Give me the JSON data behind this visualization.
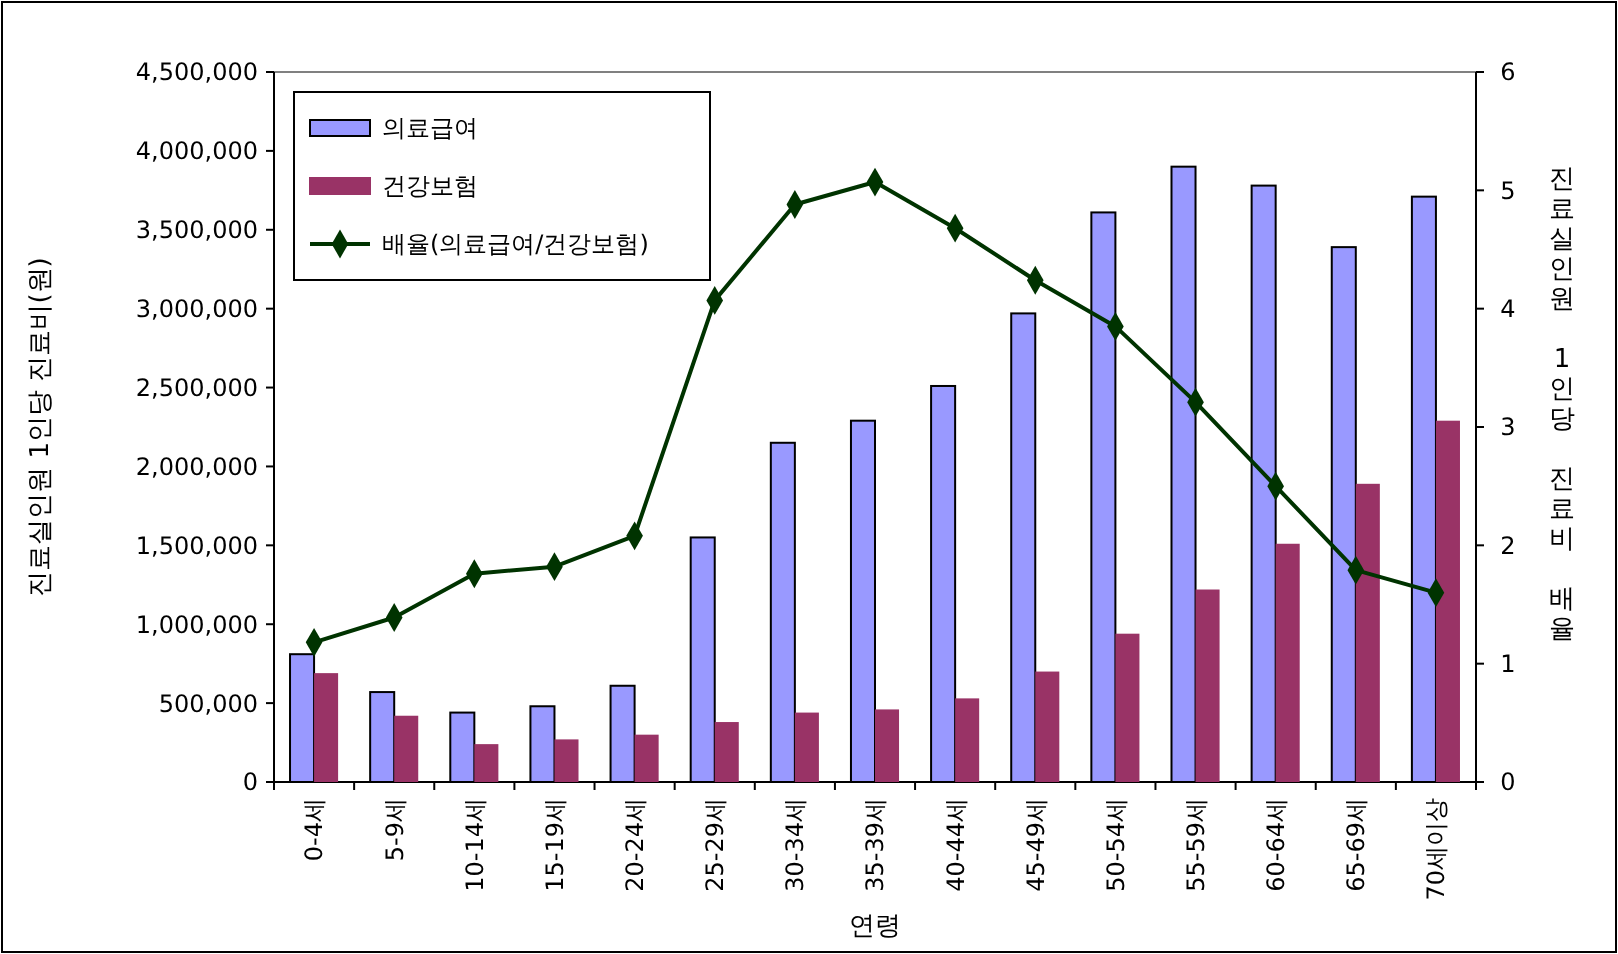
{
  "chart_data": {
    "type": "bar",
    "xlabel": "연령",
    "ylabel": "진료실인원 1인당 진료비(원)",
    "y2label": "진료실인원 1인당 진료비 배율",
    "categories": [
      "0-4세",
      "5-9세",
      "10-14세",
      "15-19세",
      "20-24세",
      "25-29세",
      "30-34세",
      "35-39세",
      "40-44세",
      "45-49세",
      "50-54세",
      "55-59세",
      "60-64세",
      "65-69세",
      "70세이상"
    ],
    "series": [
      {
        "name": "의료급여",
        "color": "#9999ff",
        "values": [
          810000,
          570000,
          440000,
          480000,
          610000,
          1550000,
          2150000,
          2290000,
          2510000,
          2970000,
          3610000,
          3900000,
          3780000,
          3390000,
          3710000
        ]
      },
      {
        "name": "건강보험",
        "color": "#993366",
        "values": [
          690000,
          420000,
          240000,
          270000,
          300000,
          380000,
          440000,
          460000,
          530000,
          700000,
          940000,
          1220000,
          1510000,
          1890000,
          2290000
        ]
      },
      {
        "name": "배율(의료급여/건강보험)",
        "type": "line",
        "axis": "y2",
        "color": "#003300",
        "marker": "diamond",
        "values": [
          1.18,
          1.39,
          1.76,
          1.82,
          2.08,
          4.07,
          4.88,
          5.07,
          4.68,
          4.24,
          3.85,
          3.21,
          2.5,
          1.79,
          1.6
        ]
      }
    ],
    "ylim": [
      0,
      4500000
    ],
    "yticks": [
      {
        "value": 0,
        "label": "0"
      },
      {
        "value": 500000,
        "label": "500,000"
      },
      {
        "value": 1000000,
        "label": "1,000,000"
      },
      {
        "value": 1500000,
        "label": "1,500,000"
      },
      {
        "value": 2000000,
        "label": "2,000,000"
      },
      {
        "value": 2500000,
        "label": "2,500,000"
      },
      {
        "value": 3000000,
        "label": "3,000,000"
      },
      {
        "value": 3500000,
        "label": "3,500,000"
      },
      {
        "value": 4000000,
        "label": "4,000,000"
      },
      {
        "value": 4500000,
        "label": "4,500,000"
      }
    ],
    "y2lim": [
      0,
      6
    ],
    "y2ticks": [
      0,
      1,
      2,
      3,
      4,
      5,
      6
    ],
    "legend": "top left",
    "grid": false
  }
}
